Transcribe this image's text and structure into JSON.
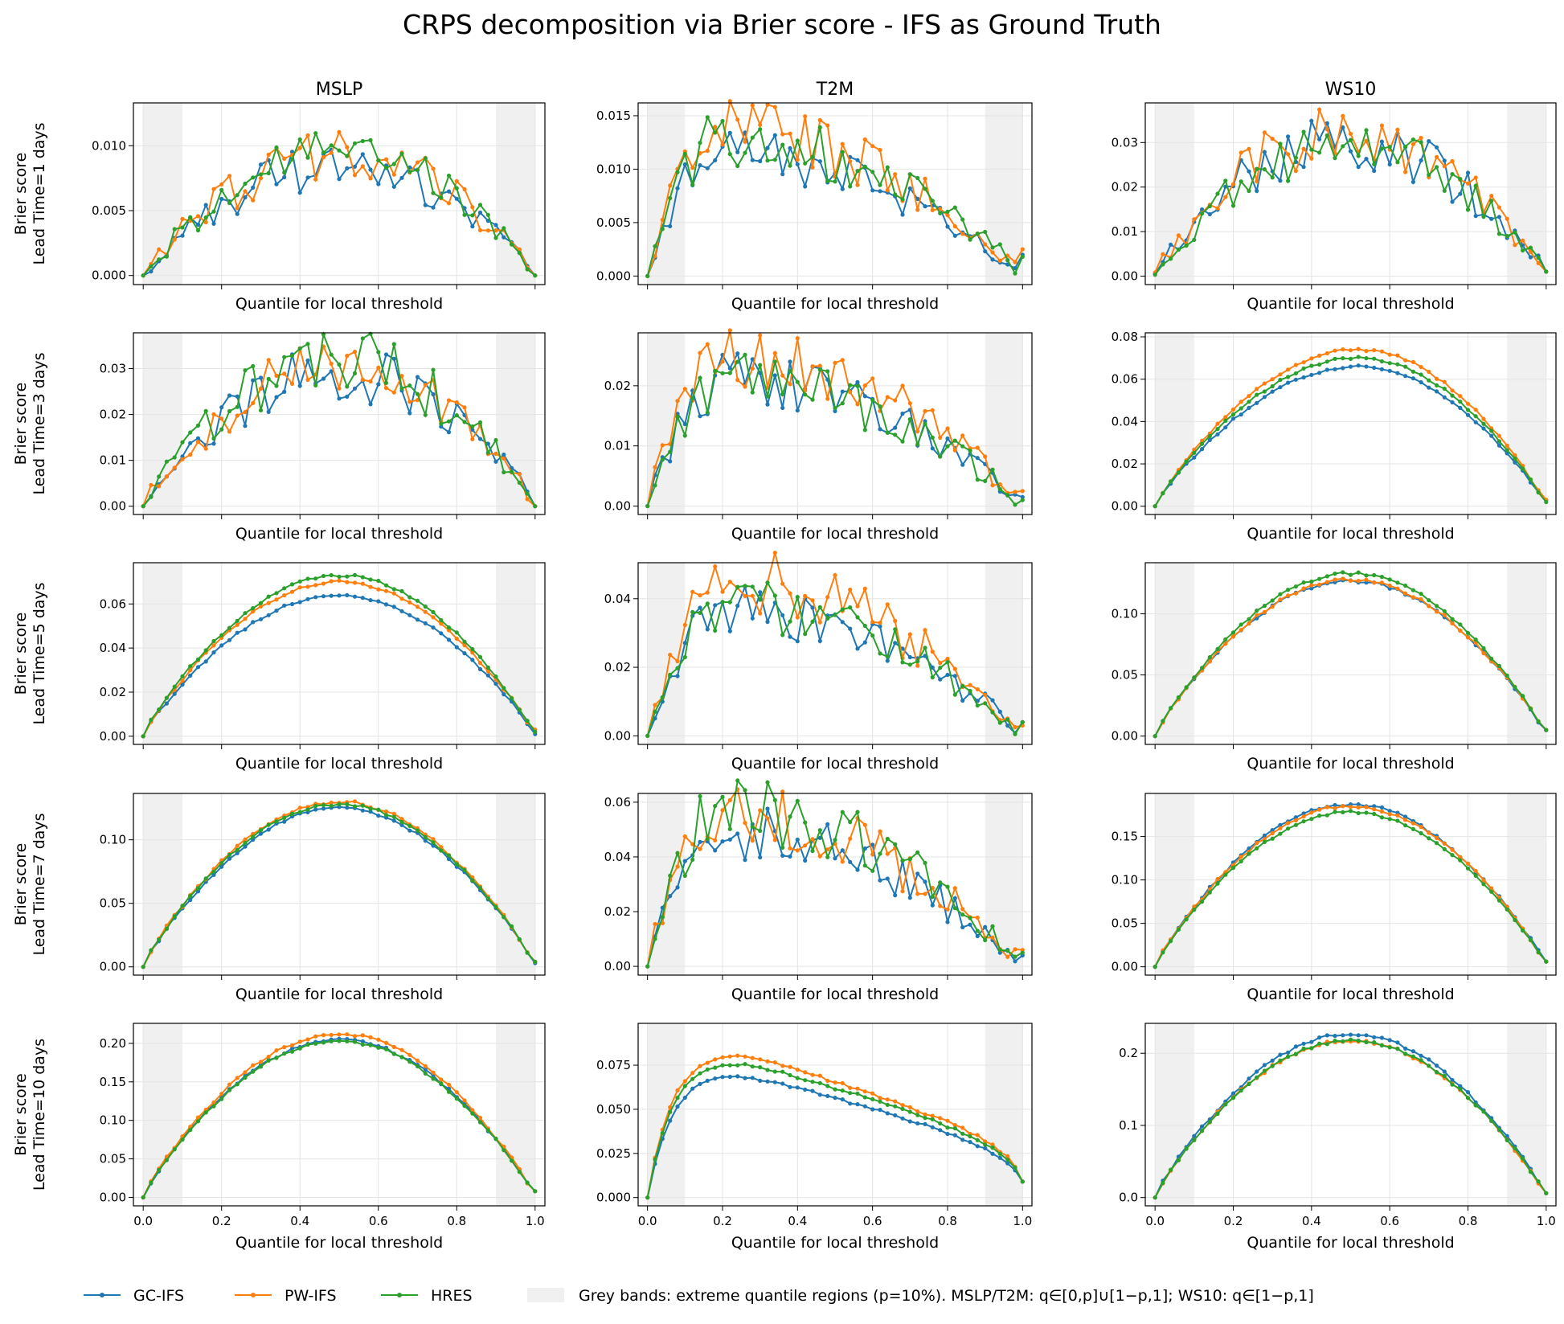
{
  "figure_title": "CRPS decomposition via Brier score - IFS as Ground Truth",
  "columns": [
    "MSLP",
    "T2M",
    "WS10"
  ],
  "row_labels": [
    [
      "Brier score",
      "Lead Time=1 days"
    ],
    [
      "Brier score",
      "Lead Time=3 days"
    ],
    [
      "Brier score",
      "Lead Time=5 days"
    ],
    [
      "Brier score",
      "Lead Time=7 days"
    ],
    [
      "Brier score",
      "Lead Time=10 days"
    ]
  ],
  "x_label": "Quantile for local threshold",
  "x_ticks": [
    "0.0",
    "0.2",
    "0.4",
    "0.6",
    "0.8",
    "1.0"
  ],
  "legend": {
    "series": [
      {
        "name": "GC-IFS",
        "color": "#1f77b4"
      },
      {
        "name": "PW-IFS",
        "color": "#ff7f0e"
      },
      {
        "name": "HRES",
        "color": "#2ca02c"
      }
    ],
    "band_label": "Grey bands: extreme quantile regions (p=10%). MSLP/T2M: q∈[0,p]∪[1−p,1]; WS10: q∈[1−p,1]"
  },
  "chart_data": {
    "type": "line",
    "x": "quantiles 0.00 to 1.00 in steps of 0.02 (51 points)",
    "grey_bands": [
      [
        0.0,
        0.1
      ],
      [
        0.9,
        1.0
      ]
    ],
    "panels": [
      {
        "row": 0,
        "col": 0,
        "ylim": [
          -0.0007,
          0.0133
        ],
        "yticks": [
          0.0,
          0.005,
          0.01
        ],
        "ytick_labels": [
          "0.000",
          "0.005",
          "0.010"
        ],
        "profile": "noisy",
        "peak_at": 0.5,
        "peaks": {
          "GC-IFS": 0.0085,
          "PW-IFS": 0.0093,
          "HRES": 0.0093
        },
        "end_values": {
          "GC-IFS": [
            0.0,
            0.0
          ],
          "PW-IFS": [
            0.0,
            0.0
          ],
          "HRES": [
            0.0,
            0.0
          ]
        }
      },
      {
        "row": 0,
        "col": 1,
        "ylim": [
          -0.0008,
          0.0162
        ],
        "yticks": [
          0.0,
          0.005,
          0.01,
          0.015
        ],
        "ytick_labels": [
          "0.000",
          "0.005",
          "0.010",
          "0.015"
        ],
        "profile": "noisy",
        "peak_at": 0.2,
        "peaks": {
          "GC-IFS": 0.0115,
          "PW-IFS": 0.0135,
          "HRES": 0.013
        },
        "end_values": {
          "GC-IFS": [
            0.0,
            0.002
          ],
          "PW-IFS": [
            0.0,
            0.0025
          ],
          "HRES": [
            0.0,
            0.0018
          ]
        }
      },
      {
        "row": 0,
        "col": 2,
        "ylim": [
          -0.0019,
          0.0389
        ],
        "yticks": [
          0.0,
          0.01,
          0.02,
          0.03
        ],
        "ytick_labels": [
          "0.00",
          "0.01",
          "0.02",
          "0.03"
        ],
        "profile": "noisy",
        "peak_at": 0.48,
        "peaks": {
          "GC-IFS": 0.031,
          "PW-IFS": 0.032,
          "HRES": 0.029
        },
        "end_values": {
          "GC-IFS": [
            0.0005,
            0.001
          ],
          "PW-IFS": [
            0.0008,
            0.001
          ],
          "HRES": [
            0.0003,
            0.001
          ]
        }
      },
      {
        "row": 1,
        "col": 0,
        "ylim": [
          -0.0018,
          0.0378
        ],
        "yticks": [
          0.0,
          0.01,
          0.02,
          0.03
        ],
        "ytick_labels": [
          "0.00",
          "0.01",
          "0.02",
          "0.03"
        ],
        "profile": "noisy",
        "peak_at": 0.5,
        "peaks": {
          "GC-IFS": 0.029,
          "PW-IFS": 0.031,
          "HRES": 0.032
        },
        "end_values": {
          "GC-IFS": [
            0.0,
            0.0
          ],
          "PW-IFS": [
            0.0,
            0.0
          ],
          "HRES": [
            0.0,
            0.0
          ]
        }
      },
      {
        "row": 1,
        "col": 1,
        "ylim": [
          -0.0014,
          0.0288
        ],
        "yticks": [
          0.0,
          0.01,
          0.02
        ],
        "ytick_labels": [
          "0.00",
          "0.01",
          "0.02"
        ],
        "profile": "noisy",
        "peak_at": 0.22,
        "peaks": {
          "GC-IFS": 0.021,
          "PW-IFS": 0.025,
          "HRES": 0.021
        },
        "end_values": {
          "GC-IFS": [
            0.0,
            0.0015
          ],
          "PW-IFS": [
            0.0,
            0.0025
          ],
          "HRES": [
            0.0,
            0.001
          ]
        }
      },
      {
        "row": 1,
        "col": 2,
        "ylim": [
          -0.0039,
          0.0819
        ],
        "yticks": [
          0.0,
          0.02,
          0.04,
          0.06,
          0.08
        ],
        "ytick_labels": [
          "0.00",
          "0.02",
          "0.04",
          "0.06",
          "0.08"
        ],
        "profile": "smooth",
        "peak_at": 0.52,
        "peaks": {
          "GC-IFS": 0.066,
          "PW-IFS": 0.074,
          "HRES": 0.07
        },
        "end_values": {
          "GC-IFS": [
            0.0,
            0.003
          ],
          "PW-IFS": [
            0.0,
            0.003
          ],
          "HRES": [
            0.0,
            0.002
          ]
        }
      },
      {
        "row": 2,
        "col": 0,
        "ylim": [
          -0.0037,
          0.0787
        ],
        "yticks": [
          0.0,
          0.02,
          0.04,
          0.06
        ],
        "ytick_labels": [
          "0.00",
          "0.02",
          "0.04",
          "0.06"
        ],
        "profile": "smooth",
        "peak_at": 0.5,
        "peaks": {
          "GC-IFS": 0.064,
          "PW-IFS": 0.07,
          "HRES": 0.073
        },
        "end_values": {
          "GC-IFS": [
            0.0,
            0.001
          ],
          "PW-IFS": [
            0.0,
            0.003
          ],
          "HRES": [
            0.0,
            0.002
          ]
        }
      },
      {
        "row": 2,
        "col": 1,
        "ylim": [
          -0.0025,
          0.0505
        ],
        "yticks": [
          0.0,
          0.02,
          0.04
        ],
        "ytick_labels": [
          "0.00",
          "0.02",
          "0.04"
        ],
        "profile": "noisy",
        "peak_at": 0.22,
        "peaks": {
          "GC-IFS": 0.037,
          "PW-IFS": 0.045,
          "HRES": 0.038
        },
        "end_values": {
          "GC-IFS": [
            0.0,
            0.004
          ],
          "PW-IFS": [
            0.0,
            0.003
          ],
          "HRES": [
            0.0,
            0.004
          ]
        }
      },
      {
        "row": 2,
        "col": 2,
        "ylim": [
          -0.0068,
          0.1418
        ],
        "yticks": [
          0.0,
          0.05,
          0.1
        ],
        "ytick_labels": [
          "0.00",
          "0.05",
          "0.10"
        ],
        "profile": "smooth",
        "peak_at": 0.5,
        "peaks": {
          "GC-IFS": 0.127,
          "PW-IFS": 0.128,
          "HRES": 0.133
        },
        "end_values": {
          "GC-IFS": [
            0.0,
            0.005
          ],
          "PW-IFS": [
            0.0,
            0.005
          ],
          "HRES": [
            0.0,
            0.005
          ]
        }
      },
      {
        "row": 3,
        "col": 0,
        "ylim": [
          -0.0065,
          0.1365
        ],
        "yticks": [
          0.0,
          0.05,
          0.1
        ],
        "ytick_labels": [
          "0.00",
          "0.05",
          "0.10"
        ],
        "profile": "smooth",
        "peak_at": 0.5,
        "peaks": {
          "GC-IFS": 0.125,
          "PW-IFS": 0.13,
          "HRES": 0.128
        },
        "end_values": {
          "GC-IFS": [
            0.0,
            0.003
          ],
          "PW-IFS": [
            0.0,
            0.004
          ],
          "HRES": [
            0.0,
            0.004
          ]
        }
      },
      {
        "row": 3,
        "col": 1,
        "ylim": [
          -0.0032,
          0.0632
        ],
        "yticks": [
          0.0,
          0.02,
          0.04,
          0.06
        ],
        "ytick_labels": [
          "0.00",
          "0.02",
          "0.04",
          "0.06"
        ],
        "profile": "noisy",
        "peak_at": 0.2,
        "peaks": {
          "GC-IFS": 0.05,
          "PW-IFS": 0.057,
          "HRES": 0.058
        },
        "end_values": {
          "GC-IFS": [
            0.0,
            0.004
          ],
          "PW-IFS": [
            0.0,
            0.006
          ],
          "HRES": [
            0.0,
            0.005
          ]
        }
      },
      {
        "row": 3,
        "col": 2,
        "ylim": [
          -0.0096,
          0.1996
        ],
        "yticks": [
          0.0,
          0.05,
          0.1,
          0.15
        ],
        "ytick_labels": [
          "0.00",
          "0.05",
          "0.10",
          "0.15"
        ],
        "profile": "smooth",
        "peak_at": 0.5,
        "peaks": {
          "GC-IFS": 0.187,
          "PW-IFS": 0.185,
          "HRES": 0.178
        },
        "end_values": {
          "GC-IFS": [
            0.0,
            0.006
          ],
          "PW-IFS": [
            0.0,
            0.006
          ],
          "HRES": [
            0.0,
            0.006
          ]
        }
      },
      {
        "row": 4,
        "col": 0,
        "ylim": [
          -0.011,
          0.226
        ],
        "yticks": [
          0.0,
          0.05,
          0.1,
          0.15,
          0.2
        ],
        "ytick_labels": [
          "0.00",
          "0.05",
          "0.10",
          "0.15",
          "0.20"
        ],
        "profile": "smooth",
        "peak_at": 0.5,
        "peaks": {
          "GC-IFS": 0.205,
          "PW-IFS": 0.212,
          "HRES": 0.203
        },
        "end_values": {
          "GC-IFS": [
            0.0,
            0.008
          ],
          "PW-IFS": [
            0.0,
            0.008
          ],
          "HRES": [
            0.0,
            0.008
          ]
        }
      },
      {
        "row": 4,
        "col": 1,
        "ylim": [
          -0.0047,
          0.0987
        ],
        "yticks": [
          0.0,
          0.025,
          0.05,
          0.075
        ],
        "ytick_labels": [
          "0.000",
          "0.025",
          "0.050",
          "0.075"
        ],
        "profile": "smooth-plateau",
        "peak_at": 0.25,
        "peaks": {
          "GC-IFS": 0.078,
          "PW-IFS": 0.091,
          "HRES": 0.086
        },
        "end_values": {
          "GC-IFS": [
            0.0,
            0.009
          ],
          "PW-IFS": [
            0.0,
            0.009
          ],
          "HRES": [
            0.0,
            0.009
          ]
        }
      },
      {
        "row": 4,
        "col": 2,
        "ylim": [
          -0.0115,
          0.2415
        ],
        "yticks": [
          0.0,
          0.1,
          0.2
        ],
        "ytick_labels": [
          "0.0",
          "0.1",
          "0.2"
        ],
        "profile": "smooth",
        "peak_at": 0.5,
        "peaks": {
          "GC-IFS": 0.227,
          "PW-IFS": 0.218,
          "HRES": 0.218
        },
        "end_values": {
          "GC-IFS": [
            0.0,
            0.006
          ],
          "PW-IFS": [
            0.0,
            0.006
          ],
          "HRES": [
            0.0,
            0.006
          ]
        }
      }
    ]
  }
}
